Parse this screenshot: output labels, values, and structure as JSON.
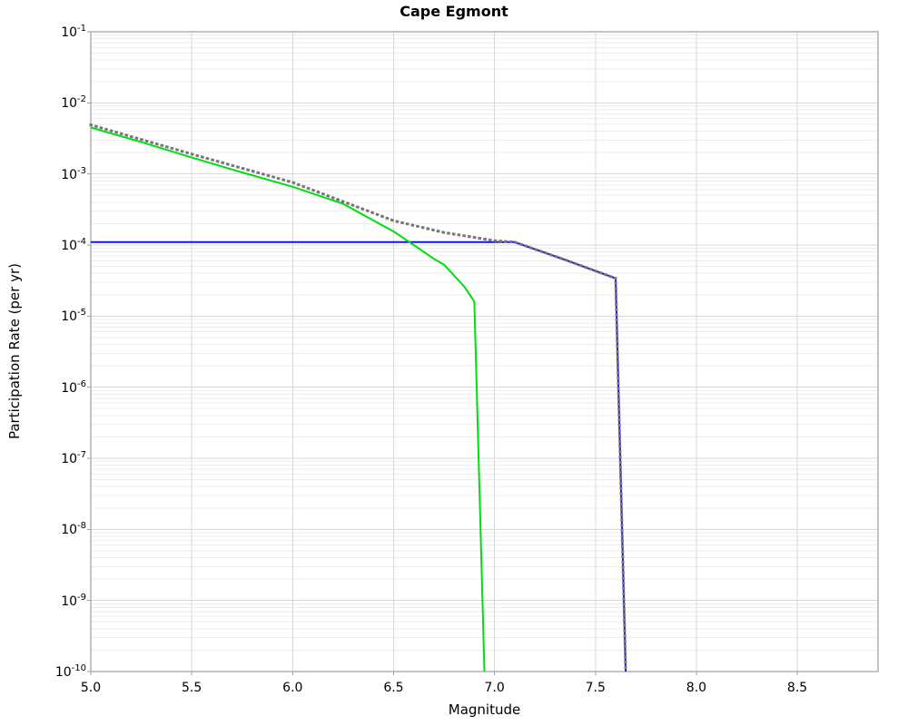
{
  "chart_data": {
    "type": "line",
    "title": "Cape Egmont",
    "xlabel": "Magnitude",
    "ylabel": "Participation Rate (per yr)",
    "x_range": [
      5.0,
      8.9
    ],
    "y_log_range": [
      -10,
      -1
    ],
    "x_ticks": [
      "5.0",
      "5.5",
      "6.0",
      "6.5",
      "7.0",
      "7.5",
      "8.0",
      "8.5"
    ],
    "y_tick_exponents": [
      -1,
      -2,
      -3,
      -4,
      -5,
      -6,
      -7,
      -8,
      -9,
      -10
    ],
    "grid": "horizontal major+minor (log), vertical major",
    "legend": "none",
    "colors": {
      "grid_major": "#d9d9d9",
      "grid_minor": "#ededed",
      "frame": "#b0b0b0",
      "tick": "#999999"
    },
    "series": [
      {
        "name": "blue-solid",
        "style": "solid",
        "color": "#1414e6",
        "width": 2,
        "points": [
          [
            5.0,
            0.00011
          ],
          [
            7.1,
            0.00011
          ],
          [
            7.35,
            6.2e-05
          ],
          [
            7.6,
            3.4e-05
          ],
          [
            7.65,
            1e-10
          ]
        ]
      },
      {
        "name": "green-solid",
        "style": "solid",
        "color": "#00dd11",
        "width": 2,
        "points": [
          [
            5.0,
            0.0045
          ],
          [
            5.25,
            0.0028
          ],
          [
            5.5,
            0.0017
          ],
          [
            5.75,
            0.00105
          ],
          [
            6.0,
            0.00066
          ],
          [
            6.25,
            0.00038
          ],
          [
            6.5,
            0.000155
          ],
          [
            6.6,
            0.0001
          ],
          [
            6.7,
            6.4e-05
          ],
          [
            6.75,
            5.3e-05
          ],
          [
            6.85,
            2.6e-05
          ],
          [
            6.9,
            1.6e-05
          ],
          [
            6.95,
            1e-10
          ]
        ]
      },
      {
        "name": "gray-dotted",
        "style": "dotted",
        "color": "#777777",
        "width": 3,
        "points": [
          [
            5.0,
            0.0049
          ],
          [
            5.5,
            0.0019
          ],
          [
            6.0,
            0.00076
          ],
          [
            6.5,
            0.00022
          ],
          [
            6.75,
            0.00015
          ],
          [
            7.0,
            0.000115
          ],
          [
            7.1,
            0.00011
          ],
          [
            7.35,
            6.2e-05
          ],
          [
            7.6,
            3.4e-05
          ],
          [
            7.65,
            1e-10
          ]
        ]
      }
    ]
  }
}
